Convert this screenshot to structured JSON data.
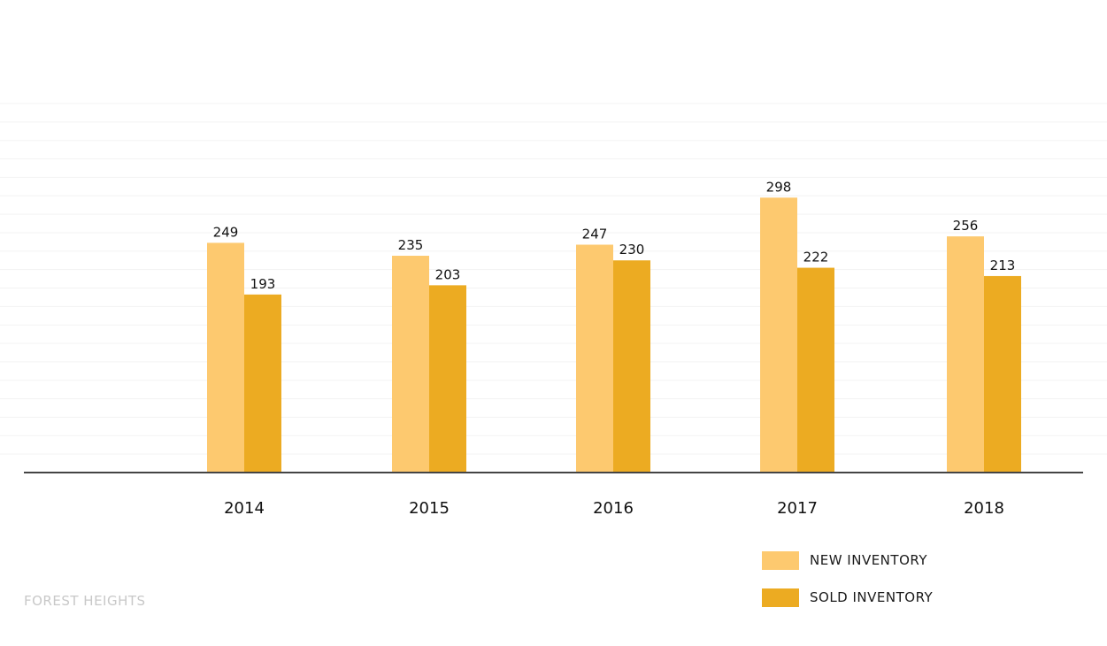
{
  "chart_data": {
    "type": "bar",
    "categories": [
      "2014",
      "2015",
      "2016",
      "2017",
      "2018"
    ],
    "series": [
      {
        "name": "NEW INVENTORY",
        "values": [
          249,
          235,
          247,
          298,
          256
        ],
        "color": "#fdc96f"
      },
      {
        "name": "SOLD INVENTORY",
        "values": [
          193,
          203,
          230,
          222,
          213
        ],
        "color": "#ecab22"
      }
    ],
    "ylim": [
      0,
      400
    ],
    "grid": true,
    "legend_position": "bottom-right"
  },
  "footer": {
    "label": "FOREST HEIGHTS"
  }
}
